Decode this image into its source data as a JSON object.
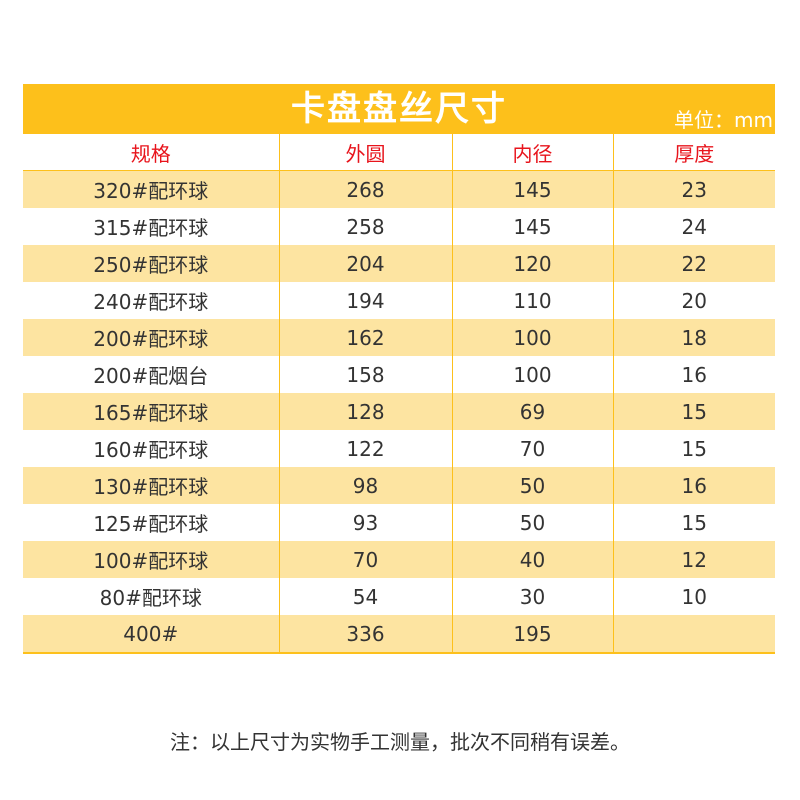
{
  "colors": {
    "banner": "#fdc01b",
    "stripe": "#fde4a1",
    "header_text": "#e8141c",
    "body_text": "#333333"
  },
  "banner": {
    "title": "卡盘盘丝尺寸",
    "unit": "单位：mm"
  },
  "table": {
    "headers": [
      "规格",
      "外圆",
      "内径",
      "厚度"
    ],
    "rows": [
      [
        "320#配环球",
        "268",
        "145",
        "23"
      ],
      [
        "315#配环球",
        "258",
        "145",
        "24"
      ],
      [
        "250#配环球",
        "204",
        "120",
        "22"
      ],
      [
        "240#配环球",
        "194",
        "110",
        "20"
      ],
      [
        "200#配环球",
        "162",
        "100",
        "18"
      ],
      [
        "200#配烟台",
        "158",
        "100",
        "16"
      ],
      [
        "165#配环球",
        "128",
        "69",
        "15"
      ],
      [
        "160#配环球",
        "122",
        "70",
        "15"
      ],
      [
        "130#配环球",
        "98",
        "50",
        "16"
      ],
      [
        "125#配环球",
        "93",
        "50",
        "15"
      ],
      [
        "100#配环球",
        "70",
        "40",
        "12"
      ],
      [
        "80#配环球",
        "54",
        "30",
        "10"
      ],
      [
        "400#",
        "336",
        "195",
        ""
      ]
    ]
  },
  "note": "注：以上尺寸为实物手工测量，批次不同稍有误差。"
}
